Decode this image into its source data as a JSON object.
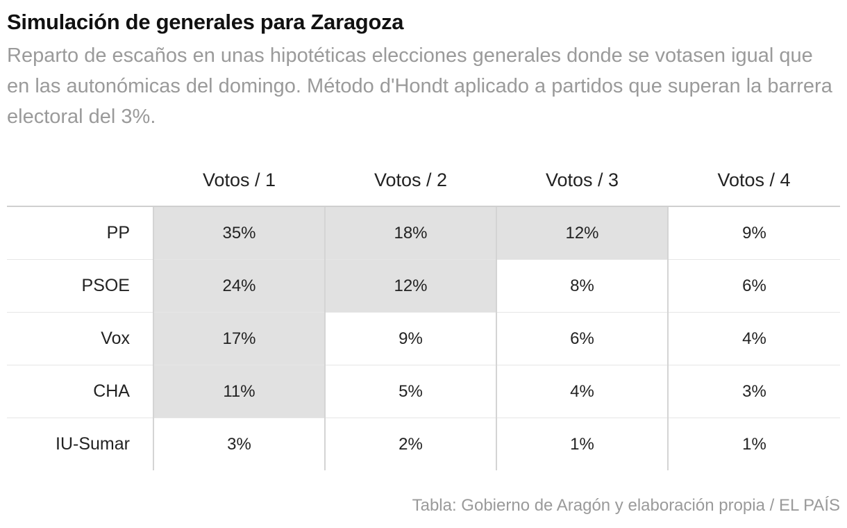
{
  "chart_data": {
    "type": "table",
    "title": "Simulación de generales para Zaragoza",
    "subtitle": "Reparto de escaños en unas hipotéticas elecciones generales donde se votasen igual que en las autonómicas del domingo. Método d'Hondt aplicado a partidos que superan la barrera electoral del 3%.",
    "columns": [
      "Votos / 1",
      "Votos / 2",
      "Votos / 3",
      "Votos / 4"
    ],
    "rows": [
      {
        "party": "PP",
        "values": [
          "35%",
          "18%",
          "12%",
          "9%"
        ],
        "seat_won": [
          true,
          true,
          true,
          false
        ]
      },
      {
        "party": "PSOE",
        "values": [
          "24%",
          "12%",
          "8%",
          "6%"
        ],
        "seat_won": [
          true,
          true,
          false,
          false
        ]
      },
      {
        "party": "Vox",
        "values": [
          "17%",
          "9%",
          "6%",
          "4%"
        ],
        "seat_won": [
          true,
          false,
          false,
          false
        ]
      },
      {
        "party": "CHA",
        "values": [
          "11%",
          "5%",
          "4%",
          "3%"
        ],
        "seat_won": [
          true,
          false,
          false,
          false
        ]
      },
      {
        "party": "IU-Sumar",
        "values": [
          "3%",
          "2%",
          "1%",
          "1%"
        ],
        "seat_won": [
          false,
          false,
          false,
          false
        ]
      }
    ],
    "highlight_color": "#e1e1e1",
    "source": "Tabla: Gobierno de Aragón y elaboración propia / EL PAÍS"
  }
}
